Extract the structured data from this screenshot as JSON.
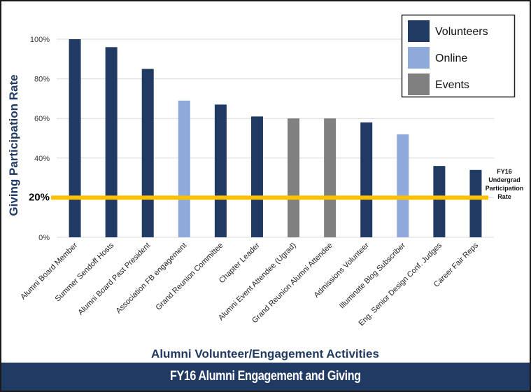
{
  "chart_data": {
    "type": "bar",
    "title": "FY16 Alumni Engagement and Giving",
    "xlabel": "Alumni Volunteer/Engagement Activities",
    "ylabel": "Giving Participation Rate",
    "ylim": [
      0,
      100
    ],
    "yticks": [
      "0%",
      "20%",
      "40%",
      "60%",
      "80%",
      "100%"
    ],
    "grid": true,
    "legend_placement": "top-right",
    "categories": [
      "Alumni Board Member",
      "Summer Sendoff Hosts",
      "Alumni Board Past President",
      "Association FB engagement",
      "Grand Reunion Committee",
      "Chapter Leader",
      "Alumni Event Attendee (Ugrad)",
      "Grand Reunion Alumni Attendee",
      "Admissions Volunteer",
      "Illuminate Blog Subscriber",
      "Eng. Senior Design Conf. Judges",
      "Career Fair Reps"
    ],
    "values": [
      100,
      96,
      85,
      69,
      67,
      61,
      60,
      60,
      58,
      52,
      36,
      34
    ],
    "groups": [
      "Volunteers",
      "Volunteers",
      "Volunteers",
      "Online",
      "Volunteers",
      "Volunteers",
      "Events",
      "Events",
      "Volunteers",
      "Online",
      "Volunteers",
      "Volunteers"
    ],
    "legend": [
      {
        "name": "Volunteers",
        "color": "#213a63"
      },
      {
        "name": "Online",
        "color": "#8eaadb"
      },
      {
        "name": "Events",
        "color": "#808080"
      }
    ],
    "reference_line": {
      "value": 20,
      "label": [
        "FY16",
        "Undergrad",
        "Participation",
        "Rate"
      ],
      "color": "#ffc000"
    }
  }
}
